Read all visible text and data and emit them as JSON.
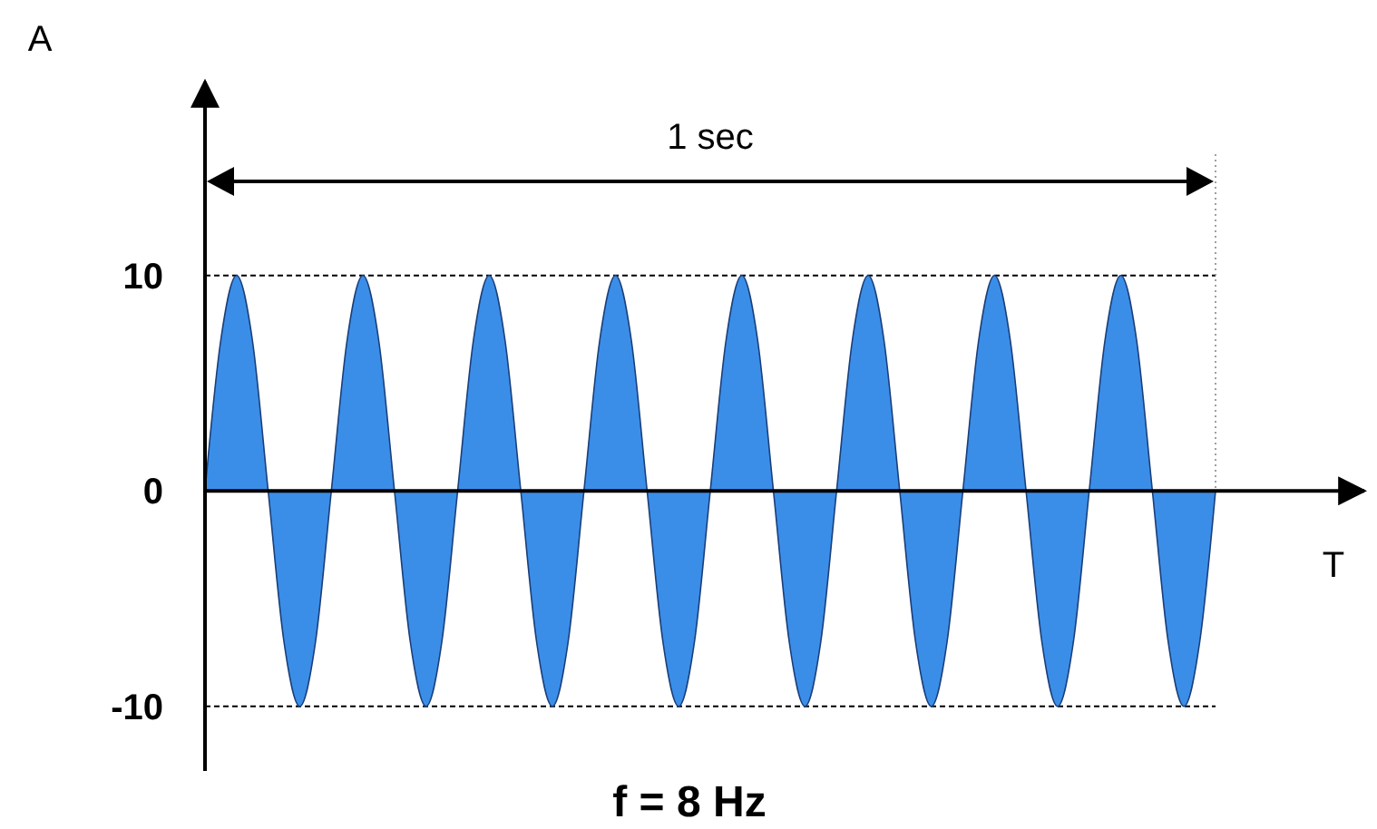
{
  "chart_data": {
    "type": "area",
    "xlabel": "T",
    "ylabel": "A",
    "categories": [
      null,
      null,
      null,
      null,
      null,
      null,
      null,
      null,
      null,
      null,
      null,
      null,
      null,
      null,
      null,
      null,
      null,
      null,
      null,
      null,
      null,
      null,
      null,
      null,
      null,
      null,
      null,
      null,
      null,
      null,
      null,
      null,
      null,
      null,
      null,
      null,
      null,
      null,
      null,
      null,
      null,
      null,
      null,
      null,
      null,
      null,
      null,
      null,
      null,
      null,
      null,
      null,
      null,
      null,
      null,
      null,
      null,
      null,
      null,
      null,
      null,
      null,
      null,
      null,
      null
    ],
    "series": [
      {
        "color": "#3b8ee8",
        "values": [
          0,
          7,
          10,
          7,
          0,
          -7,
          -10,
          -7,
          0,
          7,
          10,
          7,
          0,
          -7,
          -10,
          -7,
          0,
          7,
          10,
          7,
          0,
          -7,
          -10,
          -7,
          0,
          7,
          10,
          7,
          0,
          -7,
          -10,
          -7,
          0,
          7,
          10,
          7,
          0,
          -7,
          -10,
          -7,
          0,
          7,
          10,
          7,
          0,
          -7,
          -10,
          -7,
          0,
          7,
          10,
          7,
          0,
          -7,
          -10,
          -7,
          0,
          7,
          10,
          7,
          0,
          -7,
          -10,
          -7,
          0
        ]
      }
    ],
    "ylim": [
      -13,
      19
    ],
    "yticks": [
      -10,
      0,
      10
    ],
    "tick_labels": "y",
    "ref_lines": [
      {
        "axis": "y",
        "value": 10,
        "line_style": "dashed",
        "color": "#000000"
      },
      {
        "axis": "y",
        "value": -10,
        "line_style": "dashed",
        "color": "#000000"
      }
    ],
    "annotations": [
      "1 sec",
      "f = 8 Hz"
    ]
  }
}
